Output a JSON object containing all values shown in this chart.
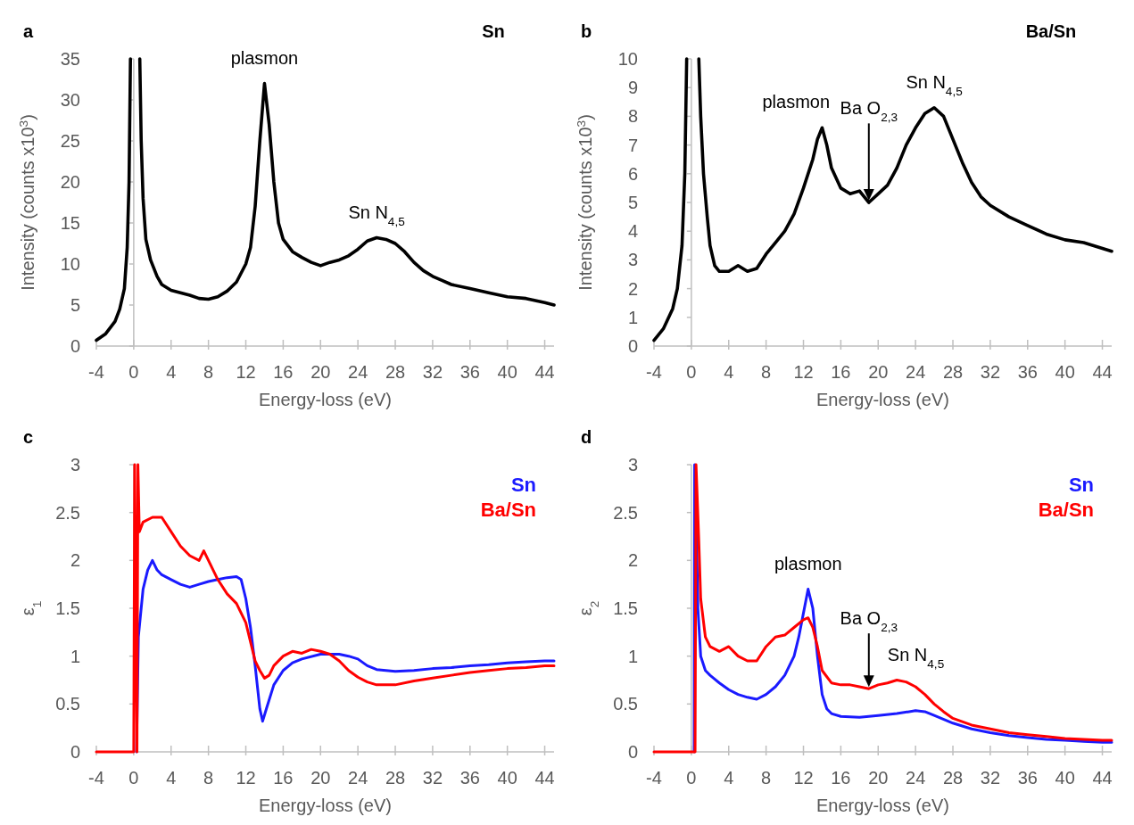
{
  "chart_data": [
    {
      "type": "line",
      "title": "Sn",
      "xlabel": "Energy-loss (eV)",
      "ylabel": "Intensity (counts x10$^{3}$)",
      "xlim": [
        -4,
        45
      ],
      "xticks": [
        -4,
        0,
        4,
        8,
        12,
        16,
        20,
        24,
        28,
        32,
        36,
        40,
        44
      ],
      "ylim": [
        0,
        35
      ],
      "yticks": [
        0,
        5,
        10,
        15,
        20,
        25,
        30,
        35
      ],
      "series": [
        {
          "color": "#000000",
          "x": [
            -4,
            -3,
            -2,
            -1.5,
            -1,
            -0.7,
            -0.5,
            -0.35,
            -0.3,
            0.6,
            0.65,
            0.8,
            1,
            1.3,
            1.8,
            2.5,
            3,
            4,
            5,
            6,
            7,
            8,
            9,
            10,
            11,
            12,
            12.5,
            13,
            13.5,
            14,
            14.5,
            15,
            15.5,
            16,
            17,
            18,
            19,
            20,
            21,
            22,
            23,
            24,
            25,
            26,
            27,
            28,
            29,
            30,
            31,
            32,
            33,
            34,
            36,
            38,
            40,
            42,
            44,
            45
          ],
          "values": [
            0.7,
            1.5,
            3,
            4.5,
            7,
            12,
            20,
            35,
            null,
            null,
            35,
            25,
            18,
            13,
            10.5,
            8.5,
            7.5,
            6.8,
            6.5,
            6.2,
            5.8,
            5.7,
            6,
            6.7,
            7.8,
            10,
            12,
            17,
            25,
            32,
            27,
            20,
            15,
            13,
            11.5,
            10.8,
            10.2,
            9.8,
            10.2,
            10.5,
            11,
            11.8,
            12.8,
            13.2,
            13,
            12.5,
            11.5,
            10.2,
            9.2,
            8.5,
            8,
            7.5,
            7,
            6.5,
            6,
            5.8,
            5.3,
            5
          ]
        }
      ],
      "annotations": [
        "a",
        {
          "text": "plasmon",
          "x": 14,
          "y": 32
        },
        {
          "text": "Sn N$_{4,5}$",
          "x": 26,
          "y": 13.2
        }
      ]
    },
    {
      "type": "line",
      "title": "Ba/Sn",
      "xlabel": "Energy-loss (eV)",
      "ylabel": "Intensity (counts x10$^{3}$)",
      "xlim": [
        -4,
        45
      ],
      "xticks": [
        -4,
        0,
        4,
        8,
        12,
        16,
        20,
        24,
        28,
        32,
        36,
        40,
        44
      ],
      "ylim": [
        0,
        10
      ],
      "yticks": [
        0,
        1,
        2,
        3,
        4,
        5,
        6,
        7,
        8,
        9,
        10
      ],
      "series": [
        {
          "color": "#000000",
          "x": [
            -4,
            -3,
            -2,
            -1.5,
            -1,
            -0.7,
            -0.5,
            -0.45,
            0.75,
            0.8,
            1,
            1.3,
            1.7,
            2,
            2.5,
            3,
            4,
            5,
            6,
            7,
            8,
            9,
            10,
            11,
            12,
            13,
            13.5,
            14,
            14.5,
            15,
            16,
            17,
            18,
            19,
            20,
            21,
            22,
            23,
            24,
            25,
            26,
            27,
            28,
            29,
            30,
            31,
            32,
            34,
            36,
            38,
            40,
            42,
            44,
            45
          ],
          "values": [
            0.2,
            0.6,
            1.3,
            2,
            3.5,
            6,
            10,
            null,
            null,
            10,
            8,
            6,
            4.5,
            3.5,
            2.8,
            2.6,
            2.6,
            2.8,
            2.6,
            2.7,
            3.2,
            3.6,
            4,
            4.6,
            5.5,
            6.5,
            7.2,
            7.6,
            7,
            6.2,
            5.5,
            5.3,
            5.4,
            5,
            5.3,
            5.6,
            6.2,
            7,
            7.6,
            8.1,
            8.3,
            8,
            7.2,
            6.4,
            5.7,
            5.2,
            4.9,
            4.5,
            4.2,
            3.9,
            3.7,
            3.6,
            3.4,
            3.3
          ]
        }
      ],
      "annotations": [
        "b",
        {
          "text": "plasmon",
          "x": 14,
          "y": 7.6
        },
        "Ba O$_{2,3}$",
        {
          "text": "Sn N$_{4,5}$",
          "x": 26,
          "y": 8.3
        }
      ]
    },
    {
      "type": "line",
      "xlabel": "Energy-loss (eV)",
      "ylabel": "ε$_{1}$",
      "xlim": [
        -4,
        45
      ],
      "xticks": [
        -4,
        0,
        4,
        8,
        12,
        16,
        20,
        24,
        28,
        32,
        36,
        40,
        44
      ],
      "ylim": [
        0,
        3
      ],
      "yticks": [
        0,
        0.5,
        1,
        1.5,
        2,
        2.5,
        3
      ],
      "legend": "top right",
      "series": [
        {
          "name": "Sn",
          "color": "#1a1aff",
          "x": [
            0.3,
            0.5,
            1,
            1.5,
            2,
            2.5,
            3,
            4,
            5,
            6,
            7,
            8,
            9,
            10,
            11,
            11.5,
            12,
            12.5,
            13,
            13.5,
            13.8,
            14.2,
            15,
            16,
            17,
            18,
            20,
            22,
            23,
            24,
            25,
            26,
            28,
            30,
            32,
            34,
            36,
            38,
            40,
            42,
            44,
            45
          ],
          "values": [
            0,
            1.2,
            1.7,
            1.9,
            2,
            1.9,
            1.85,
            1.8,
            1.75,
            1.72,
            1.75,
            1.78,
            1.8,
            1.82,
            1.83,
            1.8,
            1.6,
            1.3,
            0.9,
            0.45,
            0.32,
            0.45,
            0.7,
            0.85,
            0.93,
            0.97,
            1.02,
            1.02,
            1,
            0.97,
            0.9,
            0.86,
            0.84,
            0.85,
            0.87,
            0.88,
            0.9,
            0.91,
            0.93,
            0.94,
            0.95,
            0.95
          ]
        },
        {
          "name": "Ba/Sn",
          "color": "#ff0000",
          "x": [
            -4,
            0,
            0.1,
            0.35,
            0.45,
            0.6,
            1,
            2,
            3,
            4,
            5,
            6,
            7,
            7.5,
            8,
            9,
            10,
            11,
            12,
            12.5,
            13,
            13.5,
            14,
            14.5,
            15,
            16,
            17,
            18,
            19,
            20,
            21,
            22,
            23,
            24,
            25,
            26,
            27,
            28,
            30,
            32,
            34,
            36,
            38,
            40,
            42,
            44,
            45
          ],
          "values": [
            0,
            0,
            3,
            0,
            3,
            2.3,
            2.4,
            2.45,
            2.45,
            2.3,
            2.15,
            2.05,
            2,
            2.1,
            2,
            1.8,
            1.65,
            1.55,
            1.35,
            1.15,
            0.95,
            0.85,
            0.77,
            0.8,
            0.9,
            1,
            1.05,
            1.03,
            1.07,
            1.05,
            1.02,
            0.95,
            0.85,
            0.78,
            0.73,
            0.7,
            0.7,
            0.7,
            0.74,
            0.77,
            0.8,
            0.83,
            0.85,
            0.87,
            0.88,
            0.9,
            0.9
          ]
        }
      ],
      "annotations": [
        "c"
      ]
    },
    {
      "type": "line",
      "xlabel": "Energy-loss (eV)",
      "ylabel": "ε$_{2}$",
      "xlim": [
        -4,
        45
      ],
      "xticks": [
        -4,
        0,
        4,
        8,
        12,
        16,
        20,
        24,
        28,
        32,
        36,
        40,
        44
      ],
      "ylim": [
        0,
        3
      ],
      "yticks": [
        0,
        0.5,
        1,
        1.5,
        2,
        2.5,
        3
      ],
      "legend": "top right",
      "series": [
        {
          "name": "Sn",
          "color": "#1a1aff",
          "x": [
            0.3,
            0.35,
            0.5,
            0.7,
            1,
            1.5,
            2,
            3,
            4,
            5,
            6,
            7,
            8,
            9,
            10,
            11,
            11.5,
            12,
            12.5,
            13,
            13.5,
            14,
            14.5,
            15,
            16,
            18,
            20,
            22,
            24,
            25,
            26,
            28,
            30,
            32,
            34,
            36,
            38,
            40,
            42,
            44,
            45
          ],
          "values": [
            0,
            3,
            2.5,
            1.5,
            1,
            0.85,
            0.8,
            0.72,
            0.65,
            0.6,
            0.57,
            0.55,
            0.6,
            0.68,
            0.8,
            1,
            1.2,
            1.45,
            1.7,
            1.5,
            1,
            0.6,
            0.45,
            0.4,
            0.37,
            0.36,
            0.38,
            0.4,
            0.43,
            0.42,
            0.38,
            0.3,
            0.24,
            0.2,
            0.17,
            0.15,
            0.13,
            0.12,
            0.11,
            0.1,
            0.1
          ]
        },
        {
          "name": "Ba/Sn",
          "color": "#ff0000",
          "x": [
            -4,
            0.4,
            0.5,
            0.8,
            1,
            1.5,
            2,
            3,
            4,
            5,
            6,
            7,
            8,
            9,
            10,
            11,
            12,
            12.5,
            13,
            13.5,
            14,
            15,
            16,
            17,
            18,
            19,
            20,
            21,
            22,
            23,
            24,
            25,
            26,
            27,
            28,
            30,
            32,
            34,
            36,
            38,
            40,
            42,
            44,
            45
          ],
          "values": [
            0,
            0,
            3,
            2.2,
            1.6,
            1.2,
            1.1,
            1.05,
            1.1,
            1,
            0.95,
            0.95,
            1.1,
            1.2,
            1.22,
            1.3,
            1.38,
            1.4,
            1.3,
            1.1,
            0.85,
            0.72,
            0.7,
            0.7,
            0.68,
            0.66,
            0.7,
            0.72,
            0.75,
            0.73,
            0.68,
            0.6,
            0.5,
            0.42,
            0.35,
            0.28,
            0.24,
            0.2,
            0.18,
            0.16,
            0.14,
            0.13,
            0.12,
            0.12
          ]
        }
      ],
      "annotations": [
        "d",
        {
          "text": "plasmon",
          "x": 12.5,
          "y": 1.7
        },
        "Ba O$_{2,3}$",
        {
          "text": "Sn N$_{4,5}$",
          "x": 22,
          "y": 0.75
        }
      ]
    }
  ]
}
